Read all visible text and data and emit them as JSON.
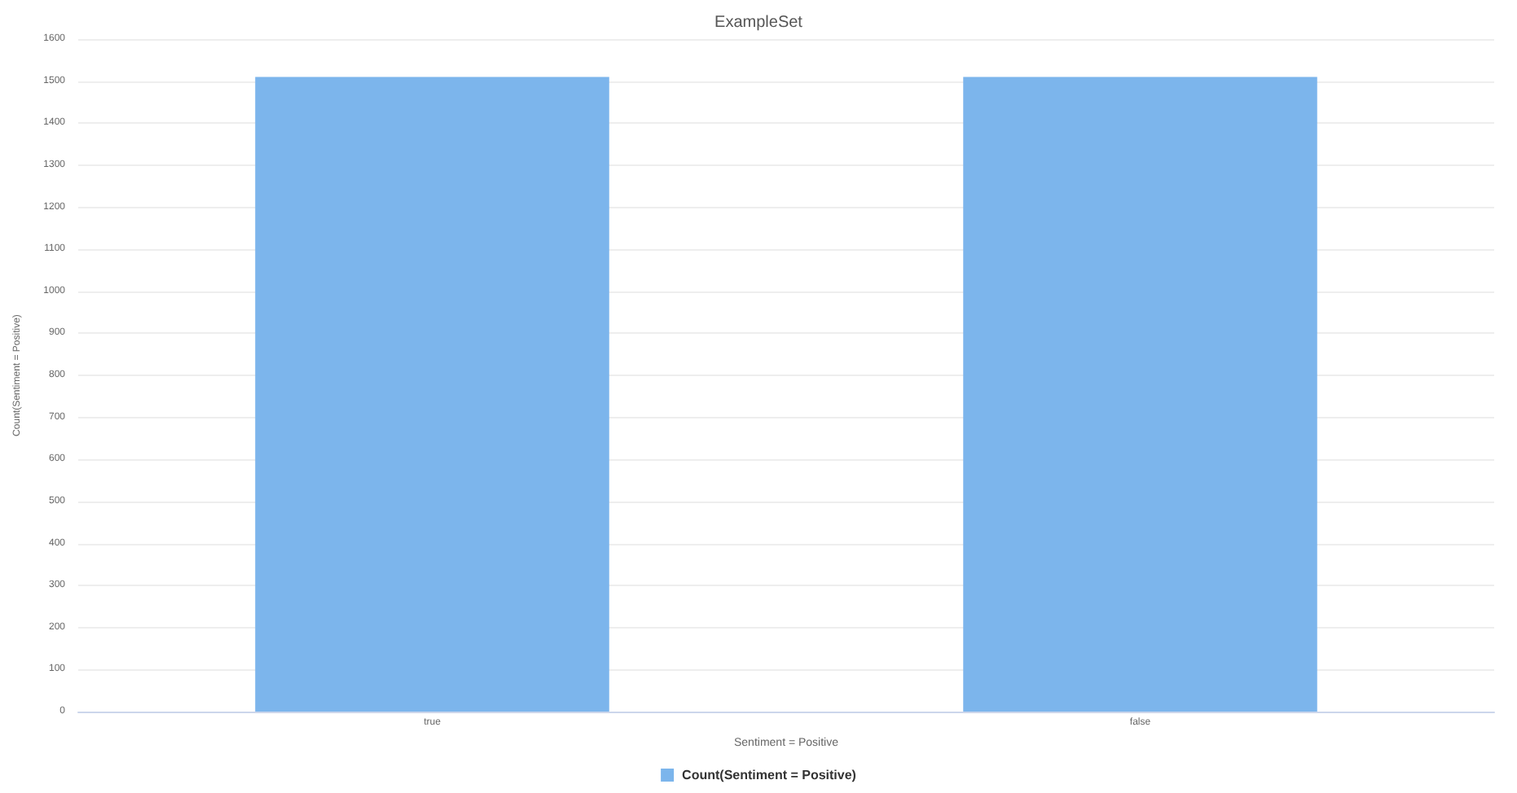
{
  "chart_data": {
    "type": "bar",
    "title": "ExampleSet",
    "xlabel": "Sentiment = Positive",
    "ylabel": "Count(Sentiment = Positive)",
    "categories": [
      "true",
      "false"
    ],
    "series": [
      {
        "name": "Count(Sentiment = Positive)",
        "color": "#7cb5ec",
        "values": [
          1510,
          1510
        ]
      }
    ],
    "ylim": [
      0,
      1600
    ],
    "yticks": [
      0,
      100,
      200,
      300,
      400,
      500,
      600,
      700,
      800,
      900,
      1000,
      1100,
      1200,
      1300,
      1400,
      1500,
      1600
    ],
    "grid": "y",
    "legend": "bottom"
  }
}
